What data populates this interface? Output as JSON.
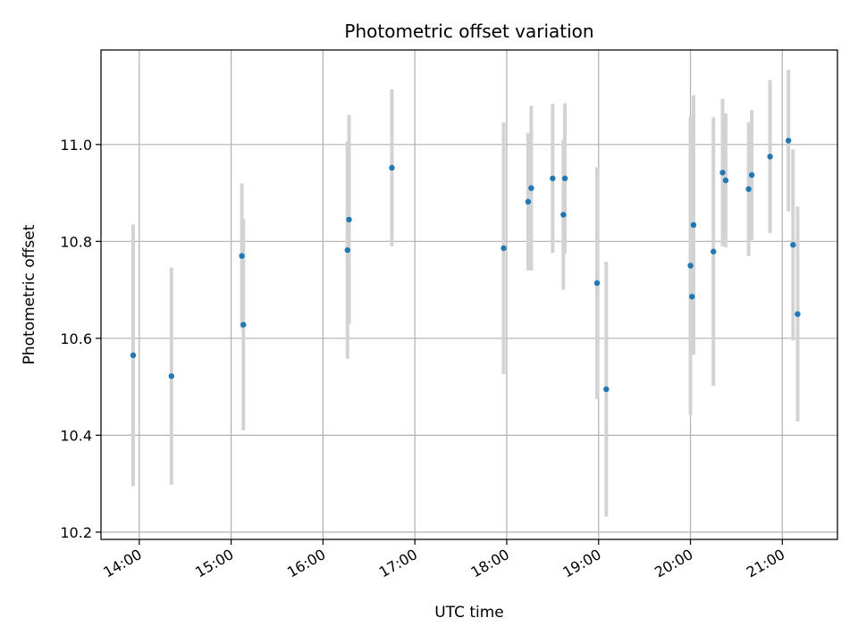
{
  "chart_data": {
    "type": "scatter",
    "title": "Photometric offset variation",
    "xlabel": "UTC time",
    "ylabel": "Photometric offset",
    "x_tick_labels": [
      "14:00",
      "15:00",
      "16:00",
      "17:00",
      "18:00",
      "19:00",
      "20:00",
      "21:00"
    ],
    "x_tick_hours": [
      14,
      15,
      16,
      17,
      18,
      19,
      20,
      21
    ],
    "y_ticks": [
      10.2,
      10.4,
      10.6,
      10.8,
      11.0
    ],
    "y_tick_labels": [
      "10.2",
      "10.4",
      "10.6",
      "10.8",
      "11.0"
    ],
    "xlim": [
      "13:35",
      "21:36"
    ],
    "ylim": [
      10.185,
      11.195
    ],
    "grid": true,
    "colors": {
      "marker": "#1f77b4",
      "errorbar": "#d3d3d3",
      "grid": "#b0b0b0"
    },
    "points": [
      {
        "time": "13:56",
        "y": 10.565,
        "err_low": 10.295,
        "err_high": 10.835
      },
      {
        "time": "14:21",
        "y": 10.522,
        "err_low": 10.298,
        "err_high": 10.746
      },
      {
        "time": "15:07",
        "y": 10.77,
        "err_low": 10.62,
        "err_high": 10.92
      },
      {
        "time": "15:08",
        "y": 10.628,
        "err_low": 10.41,
        "err_high": 10.846
      },
      {
        "time": "16:16",
        "y": 10.782,
        "err_low": 10.558,
        "err_high": 11.006
      },
      {
        "time": "16:17",
        "y": 10.845,
        "err_low": 10.629,
        "err_high": 11.061
      },
      {
        "time": "16:45",
        "y": 10.952,
        "err_low": 10.79,
        "err_high": 11.114
      },
      {
        "time": "17:58",
        "y": 10.786,
        "err_low": 10.526,
        "err_high": 11.046
      },
      {
        "time": "18:14",
        "y": 10.882,
        "err_low": 10.74,
        "err_high": 11.024
      },
      {
        "time": "18:16",
        "y": 10.91,
        "err_low": 10.74,
        "err_high": 11.08
      },
      {
        "time": "18:30",
        "y": 10.93,
        "err_low": 10.776,
        "err_high": 11.084
      },
      {
        "time": "18:37",
        "y": 10.855,
        "err_low": 10.7,
        "err_high": 11.01
      },
      {
        "time": "18:38",
        "y": 10.93,
        "err_low": 10.775,
        "err_high": 11.085
      },
      {
        "time": "18:59",
        "y": 10.714,
        "err_low": 10.475,
        "err_high": 10.953
      },
      {
        "time": "19:05",
        "y": 10.495,
        "err_low": 10.232,
        "err_high": 10.758
      },
      {
        "time": "20:00",
        "y": 10.75,
        "err_low": 10.442,
        "err_high": 11.058
      },
      {
        "time": "20:01",
        "y": 10.686,
        "err_low": 10.568,
        "err_high": 10.804
      },
      {
        "time": "20:02",
        "y": 10.834,
        "err_low": 10.566,
        "err_high": 11.102
      },
      {
        "time": "20:15",
        "y": 10.779,
        "err_low": 10.502,
        "err_high": 11.056
      },
      {
        "time": "20:21",
        "y": 10.942,
        "err_low": 10.79,
        "err_high": 11.094
      },
      {
        "time": "20:23",
        "y": 10.926,
        "err_low": 10.788,
        "err_high": 11.064
      },
      {
        "time": "20:38",
        "y": 10.908,
        "err_low": 10.77,
        "err_high": 11.046
      },
      {
        "time": "20:40",
        "y": 10.937,
        "err_low": 10.803,
        "err_high": 11.071
      },
      {
        "time": "20:52",
        "y": 10.975,
        "err_low": 10.817,
        "err_high": 11.133
      },
      {
        "time": "21:04",
        "y": 11.008,
        "err_low": 10.862,
        "err_high": 11.154
      },
      {
        "time": "21:07",
        "y": 10.793,
        "err_low": 10.596,
        "err_high": 10.99
      },
      {
        "time": "21:10",
        "y": 10.65,
        "err_low": 10.428,
        "err_high": 10.872
      }
    ]
  }
}
